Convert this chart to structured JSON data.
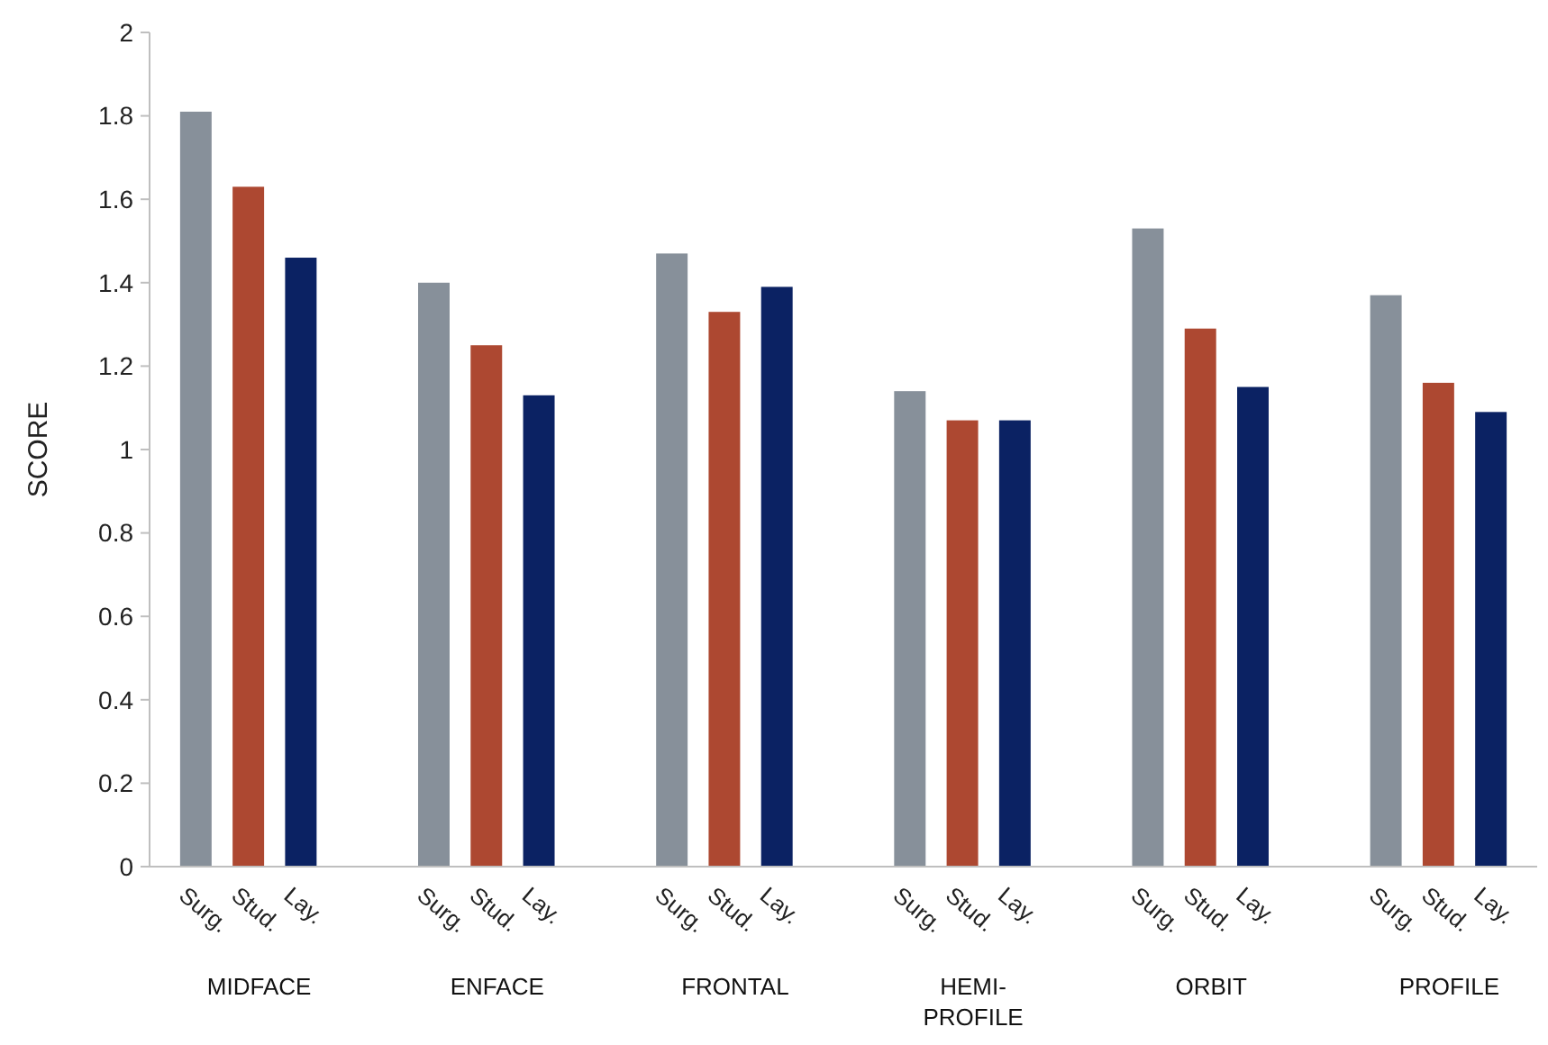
{
  "chart_data": {
    "type": "bar",
    "ylabel": "SCORE",
    "categories": [
      "MIDFACE",
      "ENFACE",
      "FRONTAL",
      "HEMI-PROFILE",
      "ORBIT",
      "PROFILE"
    ],
    "series": [
      {
        "name": "Surg.",
        "color": "#87909a",
        "values": [
          1.81,
          1.4,
          1.47,
          1.14,
          1.53,
          1.37
        ]
      },
      {
        "name": "Stud.",
        "color": "#ad4831",
        "values": [
          1.63,
          1.25,
          1.33,
          1.07,
          1.29,
          1.16
        ]
      },
      {
        "name": "Lay.",
        "color": "#0b2263",
        "values": [
          1.46,
          1.13,
          1.39,
          1.07,
          1.15,
          1.09
        ]
      }
    ],
    "ylim": [
      0,
      2
    ],
    "yticks": [
      0,
      0.2,
      0.4,
      0.6,
      0.8,
      1,
      1.2,
      1.4,
      1.6,
      1.8,
      2
    ],
    "grid": false
  }
}
